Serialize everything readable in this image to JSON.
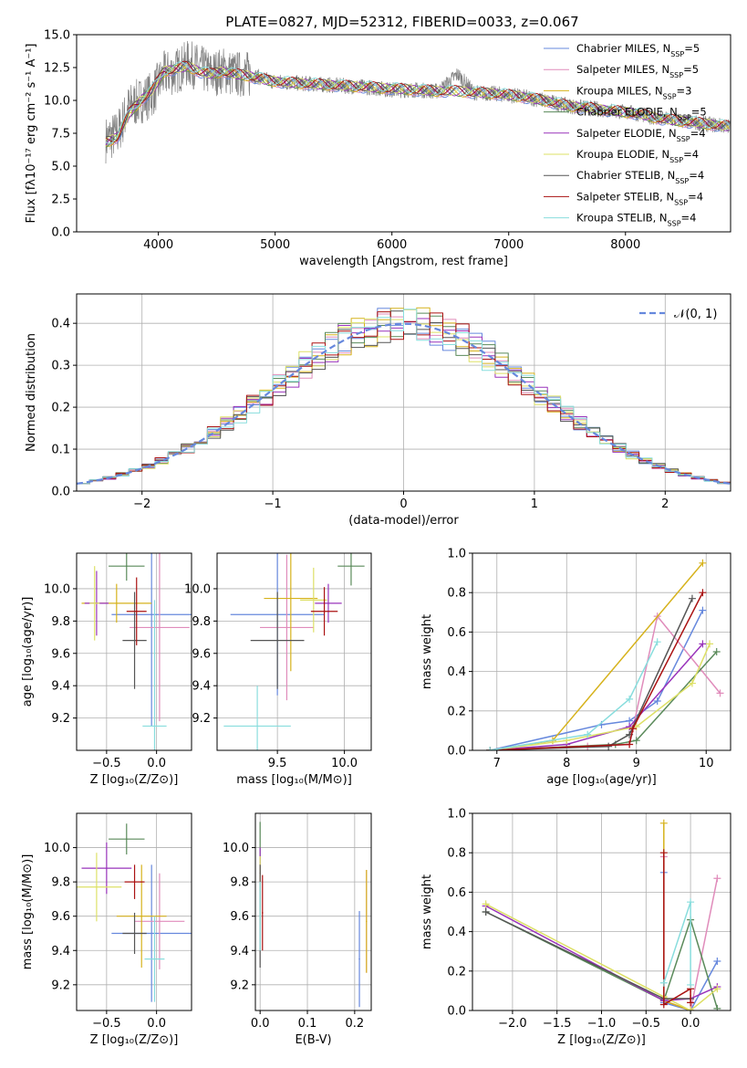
{
  "figure_title": "PLATE=0827, MJD=52312, FIBERID=0033, z=0.067",
  "series_colors": [
    "#6688dd",
    "#e08cbb",
    "#d6b21c",
    "#5a8a5a",
    "#9933bb",
    "#dde066",
    "#555555",
    "#aa1111",
    "#88dddd"
  ],
  "chart_data": [
    {
      "id": "spectrum",
      "type": "line",
      "title": "PLATE=0827, MJD=52312, FIBERID=0033, z=0.067",
      "xlabel": "wavelength [Angstrom, rest frame]",
      "ylabel": "Flux [fλ10⁻¹⁷ erg cm⁻² s⁻¹ A⁻¹]",
      "xlim": [
        3300,
        8900
      ],
      "ylim": [
        0,
        15
      ],
      "xticks": [
        "4000",
        "5000",
        "6000",
        "7000",
        "8000"
      ],
      "yticks": [
        "0.0",
        "2.5",
        "5.0",
        "7.5",
        "10.0",
        "12.5",
        "15.0"
      ],
      "legend_position": "upper-right",
      "legend": [
        "Chabrier MILES, N_SSP=5",
        "Salpeter MILES, N_SSP=5",
        "Kroupa MILES, N_SSP=3",
        "Chabrier ELODIE, N_SSP=5",
        "Salpeter ELODIE, N_SSP=4",
        "Kroupa ELODIE, N_SSP=4",
        "Chabrier STELIB, N_SSP=4",
        "Salpeter STELIB, N_SSP=4",
        "Kroupa STELIB, N_SSP=4"
      ],
      "legend_display": [
        {
          "text": "Chabrier MILES, N",
          "n": "5"
        },
        {
          "text": "Salpeter MILES, N",
          "n": "5"
        },
        {
          "text": "Kroupa MILES, N",
          "n": "3"
        },
        {
          "text": "Chabrier ELODIE, N",
          "n": "5"
        },
        {
          "text": "Salpeter ELODIE, N",
          "n": "4"
        },
        {
          "text": "Kroupa ELODIE, N",
          "n": "4"
        },
        {
          "text": "Chabrier STELIB, N",
          "n": "4"
        },
        {
          "text": "Salpeter STELIB, N",
          "n": "4"
        },
        {
          "text": "Kroupa STELIB, N",
          "n": "4"
        }
      ],
      "ssp_sub": "SSP",
      "data_color": "#808080",
      "data_series": {
        "name": "data",
        "x": [
          3550,
          3650,
          3750,
          3850,
          3950,
          4050,
          4150,
          4250,
          4350,
          4450,
          4550,
          4650,
          4750,
          4850,
          4950,
          5050,
          5200,
          5400,
          5600,
          5800,
          6000,
          6200,
          6400,
          6563,
          6700,
          6900,
          7100,
          7300,
          7500,
          7700,
          7900,
          8100,
          8300,
          8500,
          8700,
          8900
        ],
        "y": [
          7.0,
          7.5,
          9.5,
          10.0,
          10.5,
          12.0,
          12.2,
          12.8,
          12.5,
          12.0,
          12.3,
          12.0,
          12.0,
          11.8,
          11.5,
          11.4,
          11.3,
          11.2,
          11.1,
          11.0,
          10.8,
          10.8,
          10.7,
          12.0,
          10.6,
          10.5,
          10.3,
          10.0,
          9.6,
          9.4,
          9.2,
          9.0,
          8.6,
          8.4,
          8.2,
          8.0
        ]
      },
      "model_line": {
        "x": [
          3550,
          3650,
          3750,
          3850,
          3950,
          4050,
          4150,
          4250,
          4350,
          4450,
          4550,
          4650,
          4750,
          4850,
          4950,
          5050,
          5200,
          5400,
          5600,
          5800,
          6000,
          6200,
          6400,
          6563,
          6700,
          6900,
          7100,
          7300,
          7500,
          7700,
          7900,
          8100,
          8300,
          8500,
          8700,
          8900
        ],
        "y": [
          6.8,
          7.2,
          9.0,
          10.0,
          10.8,
          12.2,
          12.4,
          12.6,
          12.2,
          12.0,
          12.2,
          12.0,
          11.9,
          11.7,
          11.5,
          11.4,
          11.3,
          11.2,
          11.1,
          11.0,
          10.9,
          10.8,
          10.7,
          10.7,
          10.6,
          10.5,
          10.3,
          10.0,
          9.6,
          9.4,
          9.2,
          9.0,
          8.6,
          8.4,
          8.2,
          8.0
        ]
      }
    },
    {
      "id": "residual_hist",
      "type": "line",
      "xlabel": "(data-model)/error",
      "ylabel": "Normed distribution",
      "xlim": [
        -2.5,
        2.5
      ],
      "ylim": [
        0,
        0.47
      ],
      "xticks": [
        "−2",
        "−1",
        "0",
        "1",
        "2"
      ],
      "yticks": [
        "0.0",
        "0.1",
        "0.2",
        "0.3",
        "0.4"
      ],
      "legend": [
        "𝒩(0, 1)"
      ],
      "legend_position": "upper-right",
      "grid": true,
      "bin_edges_start": -2.5,
      "bin_width": 0.1,
      "gaussian": {
        "mean": 0,
        "sigma": 1
      }
    },
    {
      "id": "Z_vs_age",
      "type": "scatter",
      "xlabel": "Z [log₁₀(Z/Z⊙)]",
      "ylabel": "age  [log₁₀(age/yr)]",
      "xlim": [
        -0.8,
        0.35
      ],
      "ylim": [
        9.0,
        10.22
      ],
      "xticks": [
        "−0.5",
        "0.0"
      ],
      "yticks": [
        "9.2",
        "9.4",
        "9.6",
        "9.8",
        "10.0"
      ],
      "grid": true,
      "points": [
        {
          "x": -0.05,
          "y": 9.84,
          "xerr": 0.4,
          "yerr": 0.69
        },
        {
          "x": 0.03,
          "y": 9.76,
          "xerr": 0.3,
          "yerr": 0.58
        },
        {
          "x": -0.4,
          "y": 9.91,
          "xerr": 0.35,
          "yerr": 0.12
        },
        {
          "x": -0.3,
          "y": 10.14,
          "xerr": 0.18,
          "yerr": 0.09
        },
        {
          "x": -0.6,
          "y": 9.91,
          "xerr": 0.12,
          "yerr": 0.2
        },
        {
          "x": -0.62,
          "y": 9.91,
          "xerr": 0.05,
          "yerr": 0.23
        },
        {
          "x": -0.22,
          "y": 9.68,
          "xerr": 0.12,
          "yerr": 0.3
        },
        {
          "x": -0.2,
          "y": 9.86,
          "xerr": 0.1,
          "yerr": 0.21
        },
        {
          "x": -0.02,
          "y": 9.15,
          "xerr": 0.12,
          "yerr": 0.78
        }
      ]
    },
    {
      "id": "mass_vs_age",
      "type": "scatter",
      "xlabel": "mass [log₁₀(M/M⊙)]",
      "ylabel": "",
      "xlim": [
        9.05,
        10.2
      ],
      "ylim": [
        9.0,
        10.22
      ],
      "xticks": [
        "9.5",
        "10.0"
      ],
      "yticks": [
        "9.2",
        "9.4",
        "9.6",
        "9.8",
        "10.0"
      ],
      "grid": true,
      "points": [
        {
          "x": 9.5,
          "y": 9.84,
          "xerr": 0.35,
          "yerr": 0.5
        },
        {
          "x": 9.57,
          "y": 9.76,
          "xerr": 0.2,
          "yerr": 0.45
        },
        {
          "x": 9.6,
          "y": 9.94,
          "xerr": 0.2,
          "yerr": 0.45
        },
        {
          "x": 10.05,
          "y": 10.14,
          "xerr": 0.1,
          "yerr": 0.12
        },
        {
          "x": 9.88,
          "y": 9.91,
          "xerr": 0.1,
          "yerr": 0.12
        },
        {
          "x": 9.77,
          "y": 9.93,
          "xerr": 0.1,
          "yerr": 0.2
        },
        {
          "x": 9.5,
          "y": 9.68,
          "xerr": 0.2,
          "yerr": 0.3
        },
        {
          "x": 9.85,
          "y": 9.86,
          "xerr": 0.1,
          "yerr": 0.15
        },
        {
          "x": 9.35,
          "y": 9.15,
          "xerr": 0.25,
          "yerr": 0.25
        }
      ]
    },
    {
      "id": "age_mass_weight",
      "type": "line",
      "xlabel": "age  [log₁₀(age/yr)]",
      "ylabel": "mass weight",
      "xlim": [
        6.65,
        10.35
      ],
      "ylim": [
        0,
        1.0
      ],
      "xticks": [
        "7",
        "8",
        "9",
        "10"
      ],
      "yticks": [
        "0.0",
        "0.2",
        "0.4",
        "0.6",
        "0.8",
        "1.0"
      ],
      "grid": true,
      "series": [
        {
          "x": [
            6.9,
            8.5,
            8.9,
            9.3,
            9.95
          ],
          "y": [
            0.0,
            0.13,
            0.15,
            0.25,
            0.71
          ]
        },
        {
          "x": [
            6.9,
            8.3,
            8.9,
            9.3,
            10.2
          ],
          "y": [
            0.0,
            0.02,
            0.03,
            0.68,
            0.29
          ]
        },
        {
          "x": [
            6.9,
            7.8,
            9.95
          ],
          "y": [
            0.0,
            0.05,
            0.95
          ]
        },
        {
          "x": [
            6.9,
            8.7,
            9.0,
            10.15
          ],
          "y": [
            0.0,
            0.03,
            0.05,
            0.5
          ]
        },
        {
          "x": [
            6.9,
            8.0,
            8.9,
            9.95
          ],
          "y": [
            0.0,
            0.03,
            0.12,
            0.54
          ]
        },
        {
          "x": [
            6.9,
            8.0,
            9.0,
            9.8,
            10.05
          ],
          "y": [
            0.0,
            0.05,
            0.12,
            0.34,
            0.54
          ]
        },
        {
          "x": [
            6.9,
            8.6,
            8.9,
            9.8
          ],
          "y": [
            0.0,
            0.02,
            0.08,
            0.77
          ]
        },
        {
          "x": [
            6.9,
            8.9,
            8.95,
            9.95
          ],
          "y": [
            0.0,
            0.03,
            0.11,
            0.8
          ]
        },
        {
          "x": [
            6.9,
            8.3,
            8.9,
            9.3
          ],
          "y": [
            0.0,
            0.08,
            0.26,
            0.55
          ]
        }
      ]
    },
    {
      "id": "Z_vs_mass",
      "type": "scatter",
      "xlabel": "Z [log₁₀(Z/Z⊙)]",
      "ylabel": "mass [log₁₀(M/M⊙)]",
      "xlim": [
        -0.8,
        0.35
      ],
      "ylim": [
        9.05,
        10.2
      ],
      "xticks": [
        "−0.5",
        "0.0"
      ],
      "yticks": [
        "9.2",
        "9.4",
        "9.6",
        "9.8",
        "10.0"
      ],
      "grid": true,
      "points": [
        {
          "x": -0.05,
          "y": 9.5,
          "xerr": 0.4,
          "yerr": 0.4
        },
        {
          "x": 0.03,
          "y": 9.57,
          "xerr": 0.25,
          "yerr": 0.28
        },
        {
          "x": -0.15,
          "y": 9.6,
          "xerr": 0.25,
          "yerr": 0.3
        },
        {
          "x": -0.3,
          "y": 10.05,
          "xerr": 0.18,
          "yerr": 0.09
        },
        {
          "x": -0.5,
          "y": 9.88,
          "xerr": 0.25,
          "yerr": 0.15
        },
        {
          "x": -0.6,
          "y": 9.77,
          "xerr": 0.25,
          "yerr": 0.2
        },
        {
          "x": -0.22,
          "y": 9.5,
          "xerr": 0.12,
          "yerr": 0.12
        },
        {
          "x": -0.22,
          "y": 9.8,
          "xerr": 0.1,
          "yerr": 0.1
        },
        {
          "x": -0.02,
          "y": 9.35,
          "xerr": 0.1,
          "yerr": 0.25
        }
      ]
    },
    {
      "id": "ebv_vs_mass",
      "type": "scatter",
      "xlabel": "E(B-V)",
      "ylabel": "",
      "xlim": [
        -0.01,
        0.235
      ],
      "ylim": [
        9.05,
        10.2
      ],
      "xticks": [
        "0.0",
        "0.1",
        "0.2"
      ],
      "yticks": [
        "9.2",
        "9.4",
        "9.6",
        "9.8",
        "10.0"
      ],
      "grid": true,
      "points": [
        {
          "x": 0.21,
          "y": 9.35,
          "xerr": 0,
          "yerr": 0.28
        },
        {
          "x": 0.225,
          "y": 9.57,
          "xerr": 0,
          "yerr": 0.3
        },
        {
          "x": 0.225,
          "y": 9.57,
          "xerr": 0,
          "yerr": 0.3
        },
        {
          "x": 0.0,
          "y": 9.9,
          "xerr": 0,
          "yerr": 0.25
        },
        {
          "x": 0.0,
          "y": 9.85,
          "xerr": 0,
          "yerr": 0.15
        },
        {
          "x": 0.0,
          "y": 9.75,
          "xerr": 0,
          "yerr": 0.2
        },
        {
          "x": 0.0,
          "y": 9.6,
          "xerr": 0,
          "yerr": 0.3
        },
        {
          "x": 0.005,
          "y": 9.62,
          "xerr": 0,
          "yerr": 0.22
        },
        {
          "x": 0.0,
          "y": 9.6,
          "xerr": 0,
          "yerr": 0.2
        }
      ]
    },
    {
      "id": "Z_mass_weight",
      "type": "line",
      "xlabel": "Z [log₁₀(Z/Z⊙)]",
      "ylabel": "mass weight",
      "xlim": [
        -2.45,
        0.45
      ],
      "ylim": [
        0,
        1.0
      ],
      "xticks": [
        "−2.0",
        "−1.5",
        "−1.0",
        "−0.5",
        "0.0"
      ],
      "yticks": [
        "0.0",
        "0.2",
        "0.4",
        "0.6",
        "0.8",
        "1.0"
      ],
      "grid": true,
      "series": [
        {
          "x": [
            -0.3,
            -0.3,
            0.0,
            0.3
          ],
          "y": [
            0.7,
            0.04,
            0.0,
            0.25
          ]
        },
        {
          "x": [
            -0.3,
            -0.3,
            0.0,
            0.3
          ],
          "y": [
            0.78,
            0.05,
            0.0,
            0.67
          ]
        },
        {
          "x": [
            -0.3,
            -0.3,
            0.0
          ],
          "y": [
            0.95,
            0.05,
            0.0
          ]
        },
        {
          "x": [
            -2.3,
            -0.3,
            0.0,
            0.3
          ],
          "y": [
            0.5,
            0.05,
            0.46,
            0.01
          ]
        },
        {
          "x": [
            -2.3,
            -0.3,
            0.0,
            0.3
          ],
          "y": [
            0.53,
            0.05,
            0.06,
            0.12
          ]
        },
        {
          "x": [
            -2.3,
            -0.3,
            0.0,
            0.3
          ],
          "y": [
            0.54,
            0.07,
            0.0,
            0.11
          ]
        },
        {
          "x": [
            -2.3,
            -0.3,
            0.0
          ],
          "y": [
            0.5,
            0.06,
            0.06
          ]
        },
        {
          "x": [
            -0.3,
            -0.3,
            0.0,
            0.0
          ],
          "y": [
            0.8,
            0.03,
            0.11,
            0.04
          ]
        },
        {
          "x": [
            -0.3,
            0.0,
            0.0
          ],
          "y": [
            0.14,
            0.55,
            0.13
          ]
        }
      ]
    }
  ]
}
